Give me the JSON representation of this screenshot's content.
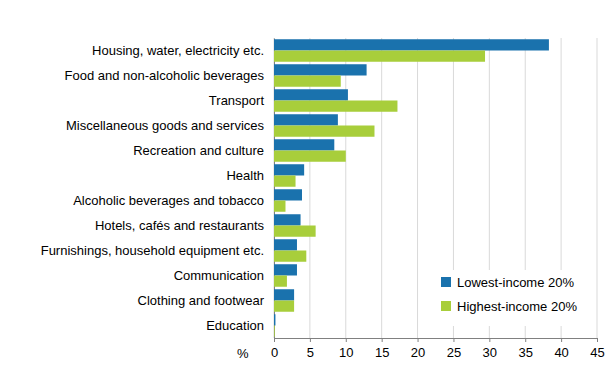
{
  "chart_data": {
    "type": "bar",
    "orientation": "horizontal",
    "categories": [
      "Housing, water, electricity etc.",
      "Food and non-alcoholic beverages",
      "Transport",
      "Miscellaneous goods and services",
      "Recreation and culture",
      "Health",
      "Alcoholic beverages and tobacco",
      "Hotels, cafés and restaurants",
      "Furnishings, household equipment etc.",
      "Communication",
      "Clothing and footwear",
      "Education"
    ],
    "series": [
      {
        "name": "Lowest-income 20%",
        "color": "#1a72ad",
        "values": [
          38.3,
          12.9,
          10.3,
          8.9,
          8.4,
          4.2,
          3.9,
          3.7,
          3.2,
          3.2,
          2.8,
          0.2
        ]
      },
      {
        "name": "Highest-income 20%",
        "color": "#a8ce3b",
        "values": [
          29.4,
          9.3,
          17.2,
          14.0,
          10.0,
          3.0,
          1.6,
          5.8,
          4.5,
          1.8,
          2.8,
          0.1
        ]
      }
    ],
    "x_label": "%",
    "xlim": [
      0,
      45
    ],
    "xticks": [
      0,
      5,
      10,
      15,
      20,
      25,
      30,
      35,
      40,
      45
    ],
    "grid": true,
    "legend": "lower right"
  }
}
